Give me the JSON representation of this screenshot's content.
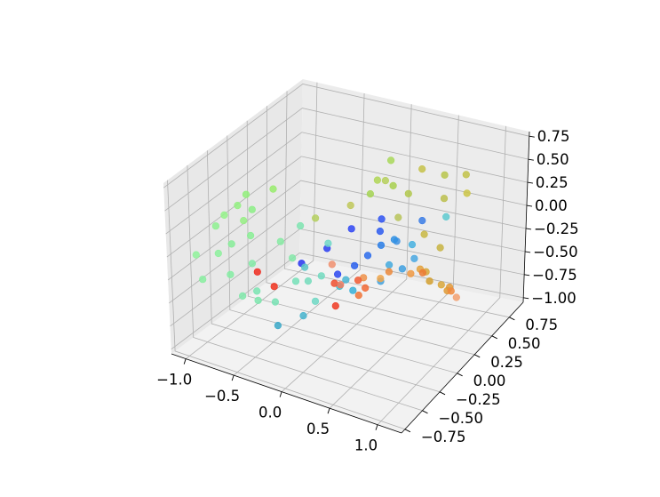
{
  "chart_data": {
    "type": "scatter",
    "projection": "3d",
    "grid": true,
    "colormap": "rainbow (colored by x)",
    "xlim": [
      -1.15,
      1.25
    ],
    "ylim": [
      -0.8,
      0.95
    ],
    "zlim": [
      -1.05,
      0.8
    ],
    "x_ticks": [
      "−1.0",
      "−0.5",
      "0.0",
      "0.5",
      "1.0"
    ],
    "y_ticks": [
      "−0.75",
      "−0.50",
      "−0.25",
      "0.00",
      "0.25",
      "0.50",
      "0.75"
    ],
    "z_ticks": [
      "−1.00",
      "−0.75",
      "−0.50",
      "−0.25",
      "0.00",
      "0.25",
      "0.50",
      "0.75"
    ],
    "x_tick_values": [
      -1.0,
      -0.5,
      0.0,
      0.5,
      1.0
    ],
    "y_tick_values": [
      -0.75,
      -0.5,
      -0.25,
      0.0,
      0.25,
      0.5,
      0.75
    ],
    "z_tick_values": [
      -1.0,
      -0.75,
      -0.5,
      -0.25,
      0.0,
      0.25,
      0.5,
      0.75
    ],
    "points": [
      {
        "x": -0.26,
        "y": -0.75,
        "z": 0.1,
        "color": "#ee2a1e"
      },
      {
        "x": -0.09,
        "y": -0.75,
        "z": 0.0,
        "color": "#f0321f"
      },
      {
        "x": 0.5,
        "y": -0.7,
        "z": -0.05,
        "color": "#f03a22"
      },
      {
        "x": 0.3,
        "y": -0.45,
        "z": -0.05,
        "color": "#ee5030"
      },
      {
        "x": 0.62,
        "y": -0.55,
        "z": 0.15,
        "color": "#f05a32"
      },
      {
        "x": 0.55,
        "y": -0.45,
        "z": -0.1,
        "color": "#f07438"
      },
      {
        "x": 0.58,
        "y": -0.4,
        "z": -0.05,
        "color": "#f26a36"
      },
      {
        "x": 0.75,
        "y": -0.3,
        "z": 0.1,
        "color": "#ec8a3c"
      },
      {
        "x": 0.9,
        "y": -0.2,
        "z": 0.05,
        "color": "#f09a44"
      },
      {
        "x": 0.95,
        "y": -0.1,
        "z": 0.0,
        "color": "#ec7a34"
      },
      {
        "x": 0.7,
        "y": -0.35,
        "z": 0.05,
        "color": "#f0a64c"
      },
      {
        "x": 0.6,
        "y": -0.45,
        "z": 0.1,
        "color": "#ee924a"
      },
      {
        "x": 0.4,
        "y": -0.5,
        "z": 0.0,
        "color": "#f07a60"
      },
      {
        "x": 0.2,
        "y": -0.35,
        "z": 0.05,
        "color": "#f09070"
      },
      {
        "x": 1.1,
        "y": 0.1,
        "z": -0.3,
        "color": "#f08a3e"
      },
      {
        "x": 1.12,
        "y": 0.15,
        "z": -0.4,
        "color": "#f2a070"
      },
      {
        "x": 0.8,
        "y": 0.2,
        "z": -0.35,
        "color": "#d4a030"
      },
      {
        "x": 0.95,
        "y": 0.25,
        "z": -0.45,
        "color": "#e09a35"
      },
      {
        "x": 0.7,
        "y": 0.2,
        "z": -0.25,
        "color": "#e4a23c"
      },
      {
        "x": 0.85,
        "y": 0.3,
        "z": -0.45,
        "color": "#dba83c"
      },
      {
        "x": 0.9,
        "y": 0.35,
        "z": -0.5,
        "color": "#e29a3a"
      },
      {
        "x": 0.65,
        "y": 0.35,
        "z": -0.4,
        "color": "#d8a83a"
      },
      {
        "x": 0.72,
        "y": 0.45,
        "z": -0.2,
        "color": "#c8b442"
      },
      {
        "x": 0.55,
        "y": 0.45,
        "z": -0.1,
        "color": "#c9b844"
      },
      {
        "x": 0.4,
        "y": 0.6,
        "z": 0.45,
        "color": "#c6c24a"
      },
      {
        "x": 0.9,
        "y": 0.55,
        "z": 0.55,
        "color": "#c2c248"
      },
      {
        "x": 0.6,
        "y": 0.65,
        "z": 0.4,
        "color": "#b8c64c"
      },
      {
        "x": 0.95,
        "y": 0.5,
        "z": 0.4,
        "color": "#cdc646"
      },
      {
        "x": 0.3,
        "y": 0.55,
        "z": 0.2,
        "color": "#b2c84e"
      },
      {
        "x": 0.1,
        "y": 0.6,
        "z": 0.2,
        "color": "#a8d050"
      },
      {
        "x": -0.1,
        "y": 0.55,
        "z": 0.1,
        "color": "#a4d454"
      },
      {
        "x": 0.05,
        "y": 0.45,
        "z": 0.35,
        "color": "#b0d656"
      },
      {
        "x": 0.15,
        "y": 0.5,
        "z": 0.55,
        "color": "#a9d85a"
      },
      {
        "x": 0.25,
        "y": 0.3,
        "z": 0.5,
        "color": "#b6d05c"
      },
      {
        "x": 0.35,
        "y": 0.35,
        "z": 0.1,
        "color": "#b8c45a"
      },
      {
        "x": -0.15,
        "y": 0.35,
        "z": 0.1,
        "color": "#c0c85a"
      },
      {
        "x": -0.4,
        "y": 0.2,
        "z": 0.0,
        "color": "#b5d060"
      },
      {
        "x": -0.6,
        "y": -0.1,
        "z": 0.45,
        "color": "#98ec6c"
      },
      {
        "x": -0.8,
        "y": -0.2,
        "z": 0.4,
        "color": "#90ee7a"
      },
      {
        "x": -0.85,
        "y": -0.25,
        "z": 0.3,
        "color": "#92f080"
      },
      {
        "x": -0.75,
        "y": -0.3,
        "z": 0.2,
        "color": "#96ee84"
      },
      {
        "x": -0.7,
        "y": -0.25,
        "z": 0.3,
        "color": "#8cee86"
      },
      {
        "x": -0.95,
        "y": -0.3,
        "z": 0.2,
        "color": "#94f28a"
      },
      {
        "x": -1.0,
        "y": -0.35,
        "z": 0.1,
        "color": "#8ef090"
      },
      {
        "x": -0.6,
        "y": -0.4,
        "z": 0.15,
        "color": "#88ee94"
      },
      {
        "x": -0.8,
        "y": -0.4,
        "z": 0.0,
        "color": "#86ec98"
      },
      {
        "x": -0.9,
        "y": -0.45,
        "z": -0.1,
        "color": "#8cf09c"
      },
      {
        "x": -1.05,
        "y": -0.55,
        "z": -0.1,
        "color": "#8ff29a"
      },
      {
        "x": -0.95,
        "y": -0.6,
        "z": -0.3,
        "color": "#88eea0"
      },
      {
        "x": -0.7,
        "y": -0.55,
        "z": -0.2,
        "color": "#84eca2"
      },
      {
        "x": -0.55,
        "y": -0.45,
        "z": -0.1,
        "color": "#82eaa6"
      },
      {
        "x": -0.5,
        "y": -0.65,
        "z": -0.3,
        "color": "#80e8aa"
      },
      {
        "x": -0.3,
        "y": -0.7,
        "z": -0.25,
        "color": "#7ee6ae"
      },
      {
        "x": -0.35,
        "y": -0.65,
        "z": -0.2,
        "color": "#7ae4b2"
      },
      {
        "x": -0.2,
        "y": -0.6,
        "z": -0.3,
        "color": "#78e2b4"
      },
      {
        "x": -0.1,
        "y": -0.45,
        "z": -0.15,
        "color": "#76e0b8"
      },
      {
        "x": -0.05,
        "y": -0.35,
        "z": -0.2,
        "color": "#74dcbc"
      },
      {
        "x": 0.05,
        "y": -0.3,
        "z": -0.15,
        "color": "#72dac0"
      },
      {
        "x": 0.1,
        "y": -0.45,
        "z": -0.3,
        "color": "#6ed8c4"
      },
      {
        "x": -0.25,
        "y": -0.3,
        "z": -0.05,
        "color": "#84e8a8"
      },
      {
        "x": -0.45,
        "y": -0.2,
        "z": 0.0,
        "color": "#86eaa2"
      },
      {
        "x": -0.4,
        "y": 0.0,
        "z": 0.05,
        "color": "#7ee4b0"
      },
      {
        "x": -0.15,
        "y": 0.05,
        "z": -0.1,
        "color": "#70d8c8"
      },
      {
        "x": 0.2,
        "y": -0.25,
        "z": -0.25,
        "color": "#40c0d0"
      },
      {
        "x": 0.3,
        "y": -0.2,
        "z": -0.3,
        "color": "#38b0d8"
      },
      {
        "x": -0.1,
        "y": -0.7,
        "z": -0.45,
        "color": "#3aa8c8"
      },
      {
        "x": 0.05,
        "y": -0.55,
        "z": -0.4,
        "color": "#46b4ce"
      },
      {
        "x": 0.45,
        "y": 0.1,
        "z": -0.2,
        "color": "#44aade"
      },
      {
        "x": 0.55,
        "y": 0.15,
        "z": -0.25,
        "color": "#3fa0e0"
      },
      {
        "x": 0.6,
        "y": 0.25,
        "z": -0.2,
        "color": "#4aa8e2"
      },
      {
        "x": 0.5,
        "y": 0.35,
        "z": -0.15,
        "color": "#48b2e0"
      },
      {
        "x": 0.35,
        "y": 0.3,
        "z": -0.1,
        "color": "#3090e4"
      },
      {
        "x": 0.25,
        "y": 0.25,
        "z": -0.15,
        "color": "#2a7ee8"
      },
      {
        "x": 0.15,
        "y": 0.2,
        "z": -0.25,
        "color": "#2c6cec"
      },
      {
        "x": 0.05,
        "y": 0.15,
        "z": -0.35,
        "color": "#2a60ee"
      },
      {
        "x": 0.2,
        "y": 0.3,
        "z": -0.05,
        "color": "#2b5af0"
      },
      {
        "x": 0.1,
        "y": 0.45,
        "z": -0.05,
        "color": "#2f54f2"
      },
      {
        "x": -0.1,
        "y": 0.3,
        "z": -0.1,
        "color": "#2f46f4"
      },
      {
        "x": -0.2,
        "y": 0.1,
        "z": -0.2,
        "color": "#2c3ff2"
      },
      {
        "x": -0.35,
        "y": -0.05,
        "z": -0.3,
        "color": "#2836f0"
      },
      {
        "x": -0.05,
        "y": 0.05,
        "z": -0.4,
        "color": "#2b48f0"
      },
      {
        "x": 0.45,
        "y": 0.55,
        "z": -0.05,
        "color": "#3a7ce6"
      },
      {
        "x": 0.3,
        "y": 0.4,
        "z": -0.2,
        "color": "#3f92e2"
      },
      {
        "x": 0.4,
        "y": 0.05,
        "z": -0.35,
        "color": "#45a2dc"
      },
      {
        "x": 0.15,
        "y": -0.1,
        "z": -0.3,
        "color": "#4ab6d4"
      },
      {
        "x": -0.2,
        "y": -0.2,
        "z": -0.2,
        "color": "#5cc6c8"
      },
      {
        "x": 0.7,
        "y": 0.55,
        "z": 0.05,
        "color": "#5ecad0"
      },
      {
        "x": 0.6,
        "y": 0.65,
        "z": 0.15,
        "color": "#bcc04e"
      }
    ]
  }
}
